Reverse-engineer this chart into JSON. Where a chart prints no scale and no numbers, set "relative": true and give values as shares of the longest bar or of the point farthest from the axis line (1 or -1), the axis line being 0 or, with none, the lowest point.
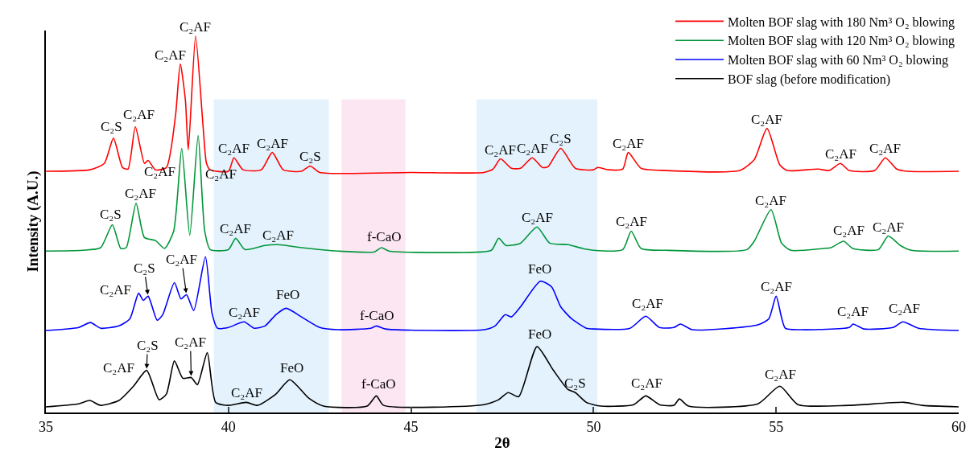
{
  "chart_data": {
    "type": "line",
    "relative": true,
    "xlabel": "2θ",
    "ylabel": "Intensity (A.U.)",
    "xlim": [
      35,
      60
    ],
    "xticks": [
      35,
      40,
      45,
      50,
      55,
      60
    ],
    "grid": false,
    "legend": "top right",
    "marker": "none",
    "line_style": "solid",
    "series": [
      {
        "name": "Molten BOF slag with 180 Nm³ O₂ blowing",
        "color": "#ff0000",
        "x": [
          35.0,
          36.2,
          36.6,
          36.85,
          37.1,
          37.25,
          37.45,
          37.7,
          37.8,
          38.0,
          38.3,
          38.55,
          38.68,
          38.82,
          38.9,
          39.1,
          39.3,
          39.4,
          39.5,
          40.0,
          40.15,
          40.4,
          40.9,
          41.2,
          41.5,
          42.0,
          42.24,
          42.5,
          45,
          47,
          47.25,
          47.45,
          47.75,
          48.0,
          48.32,
          48.6,
          48.75,
          49.1,
          49.5,
          50.0,
          50.11,
          50.4,
          50.8,
          50.95,
          51.3,
          52,
          54.0,
          54.4,
          54.75,
          55.1,
          55.3,
          56.15,
          56.45,
          56.76,
          57.0,
          57.7,
          57.99,
          58.3,
          58.6,
          60
        ],
        "values": [
          0.641,
          0.645,
          0.662,
          0.729,
          0.651,
          0.647,
          0.759,
          0.662,
          0.67,
          0.645,
          0.651,
          0.789,
          0.926,
          0.831,
          0.698,
          1.0,
          0.767,
          0.662,
          0.645,
          0.641,
          0.677,
          0.645,
          0.645,
          0.691,
          0.645,
          0.641,
          0.655,
          0.638,
          0.638,
          0.638,
          0.647,
          0.674,
          0.649,
          0.649,
          0.677,
          0.651,
          0.653,
          0.702,
          0.649,
          0.645,
          0.651,
          0.645,
          0.647,
          0.691,
          0.649,
          0.643,
          0.643,
          0.672,
          0.755,
          0.658,
          0.643,
          0.647,
          0.643,
          0.662,
          0.643,
          0.643,
          0.677,
          0.647,
          0.641,
          0.641
        ]
      },
      {
        "name": "Molten BOF slag with 120 Nm³ O₂ blowing",
        "color": "#009639",
        "x": [
          35,
          36.0,
          36.5,
          36.82,
          37.05,
          37.2,
          37.47,
          37.7,
          38.0,
          38.25,
          38.5,
          38.72,
          38.94,
          39.17,
          39.35,
          39.5,
          40.0,
          40.2,
          40.45,
          41.0,
          41.36,
          42,
          43,
          44,
          44.19,
          44.4,
          46,
          47.2,
          47.4,
          47.6,
          48.0,
          48.45,
          48.8,
          49.3,
          49.7,
          50.0,
          50.8,
          51.03,
          51.3,
          52,
          54.2,
          54.4,
          54.86,
          55.15,
          55.4,
          56.3,
          56.5,
          56.85,
          57.1,
          57.8,
          58.07,
          58.4,
          58.7,
          60
        ],
        "values": [
          0.429,
          0.431,
          0.438,
          0.499,
          0.436,
          0.438,
          0.556,
          0.465,
          0.457,
          0.436,
          0.482,
          0.702,
          0.471,
          0.736,
          0.482,
          0.433,
          0.433,
          0.463,
          0.433,
          0.444,
          0.446,
          0.438,
          0.429,
          0.427,
          0.438,
          0.429,
          0.425,
          0.431,
          0.463,
          0.444,
          0.45,
          0.493,
          0.45,
          0.446,
          0.436,
          0.431,
          0.433,
          0.482,
          0.436,
          0.431,
          0.433,
          0.455,
          0.539,
          0.45,
          0.431,
          0.436,
          0.438,
          0.455,
          0.436,
          0.433,
          0.469,
          0.444,
          0.431,
          0.429
        ]
      },
      {
        "name": "Molten BOF slag with 60 Nm³ O₂ blowing",
        "color": "#0000ff",
        "x": [
          35,
          35.9,
          36.22,
          36.5,
          37.0,
          37.3,
          37.54,
          37.67,
          37.8,
          38.05,
          38.2,
          38.52,
          38.7,
          38.85,
          39.05,
          39.37,
          39.55,
          39.7,
          40.0,
          40.43,
          40.7,
          41.0,
          41.3,
          41.58,
          42.0,
          42.5,
          43,
          43.9,
          44.05,
          44.3,
          47,
          47.3,
          47.58,
          47.75,
          48.0,
          48.54,
          48.85,
          49.1,
          49.4,
          49.8,
          50.0,
          51.0,
          51.43,
          51.8,
          52.2,
          52.38,
          52.7,
          54.5,
          54.8,
          55.0,
          55.25,
          55.7,
          57.0,
          57.11,
          57.4,
          58.2,
          58.47,
          58.9,
          60
        ],
        "values": [
          0.218,
          0.226,
          0.239,
          0.224,
          0.23,
          0.249,
          0.317,
          0.298,
          0.309,
          0.245,
          0.26,
          0.345,
          0.302,
          0.313,
          0.271,
          0.414,
          0.264,
          0.224,
          0.226,
          0.241,
          0.224,
          0.23,
          0.26,
          0.277,
          0.254,
          0.226,
          0.22,
          0.224,
          0.23,
          0.222,
          0.22,
          0.23,
          0.26,
          0.254,
          0.281,
          0.349,
          0.334,
          0.281,
          0.249,
          0.224,
          0.222,
          0.224,
          0.256,
          0.226,
          0.226,
          0.235,
          0.22,
          0.233,
          0.249,
          0.309,
          0.224,
          0.22,
          0.226,
          0.235,
          0.222,
          0.226,
          0.241,
          0.224,
          0.218
        ]
      },
      {
        "name": "BOF slag (before modification)",
        "color": "#000000",
        "x": [
          35,
          35.9,
          36.2,
          36.5,
          37.0,
          37.4,
          37.76,
          38.1,
          38.3,
          38.52,
          38.75,
          38.98,
          39.15,
          39.42,
          39.65,
          40.0,
          40.49,
          40.8,
          41.3,
          41.68,
          42.2,
          42.6,
          43.8,
          44.05,
          44.25,
          47,
          47.4,
          47.66,
          47.95,
          48.45,
          48.9,
          49.3,
          49.5,
          49.8,
          50.2,
          51.1,
          51.43,
          51.8,
          52.2,
          52.35,
          52.6,
          54.5,
          55.1,
          55.6,
          57.0,
          58.5,
          59,
          60
        ],
        "values": [
          0.015,
          0.023,
          0.032,
          0.019,
          0.032,
          0.07,
          0.112,
          0.034,
          0.049,
          0.137,
          0.091,
          0.093,
          0.074,
          0.159,
          0.027,
          0.019,
          0.027,
          0.019,
          0.049,
          0.087,
          0.038,
          0.017,
          0.017,
          0.044,
          0.019,
          0.021,
          0.034,
          0.053,
          0.042,
          0.175,
          0.112,
          0.061,
          0.053,
          0.027,
          0.017,
          0.021,
          0.044,
          0.021,
          0.019,
          0.036,
          0.017,
          0.023,
          0.07,
          0.021,
          0.019,
          0.027,
          0.019,
          0.015
        ]
      }
    ],
    "bands": [
      {
        "axis": "x",
        "from": 39.6,
        "to": 42.75,
        "color": "#e3f2fc"
      },
      {
        "axis": "x",
        "from": 43.1,
        "to": 44.85,
        "color": "#fce6f2"
      },
      {
        "axis": "x",
        "from": 46.8,
        "to": 50.1,
        "color": "#e3f2fc"
      }
    ],
    "annotations": [
      {
        "text": "C₂S",
        "x": 36.8,
        "y": 0.736
      },
      {
        "text": "C₂AF",
        "x": 37.55,
        "y": 0.767
      },
      {
        "text": "C₂AF",
        "x": 38.68,
        "y": 0.926
      },
      {
        "text": "C₂AF",
        "x": 39.1,
        "y": 1.0
      },
      {
        "text": "C₂AF",
        "x": 40.15,
        "y": 0.677
      },
      {
        "text": "C₂AF",
        "x": 41.2,
        "y": 0.691
      },
      {
        "text": "C₂S",
        "x": 42.24,
        "y": 0.655
      },
      {
        "text": "C₂AF",
        "x": 47.45,
        "y": 0.674
      },
      {
        "text": "C₂AF",
        "x": 48.32,
        "y": 0.677
      },
      {
        "text": "C₂S",
        "x": 49.1,
        "y": 0.702
      },
      {
        "text": "C₂AF",
        "x": 50.95,
        "y": 0.691
      },
      {
        "text": "C₂AF",
        "x": 54.75,
        "y": 0.755
      },
      {
        "text": "C₂AF",
        "x": 56.76,
        "y": 0.662
      },
      {
        "text": "C₂AF",
        "x": 57.99,
        "y": 0.677
      },
      {
        "text": "C₂S",
        "x": 36.77,
        "y": 0.503
      },
      {
        "text": "C₂AF",
        "x": 37.58,
        "y": 0.558
      },
      {
        "text": "C₂AF",
        "x": 38.61,
        "y": 0.615
      },
      {
        "text": "C₂AF",
        "x": 39.26,
        "y": 0.609
      },
      {
        "text": "C₂AF",
        "x": 40.2,
        "y": 0.463
      },
      {
        "text": "C₂AF",
        "x": 41.36,
        "y": 0.446
      },
      {
        "text": "f-CaO",
        "x": 44.25,
        "y": 0.442
      },
      {
        "text": "C₂AF",
        "x": 48.45,
        "y": 0.493
      },
      {
        "text": "C₂AF",
        "x": 51.03,
        "y": 0.482
      },
      {
        "text": "C₂AF",
        "x": 54.86,
        "y": 0.539
      },
      {
        "text": "C₂AF",
        "x": 56.98,
        "y": 0.459
      },
      {
        "text": "C₂AF",
        "x": 58.07,
        "y": 0.469
      },
      {
        "text": "C₂AF",
        "x": 37.54,
        "y": 0.317
      },
      {
        "text": "C₂S",
        "x": 37.8,
        "y": 0.309
      },
      {
        "text": "C₂AF",
        "x": 38.85,
        "y": 0.313
      },
      {
        "text": "C₂AF",
        "x": 40.43,
        "y": 0.241
      },
      {
        "text": "FeO",
        "x": 41.63,
        "y": 0.288
      },
      {
        "text": "f-CaO",
        "x": 44.05,
        "y": 0.232
      },
      {
        "text": "FeO",
        "x": 48.52,
        "y": 0.357
      },
      {
        "text": "C₂AF",
        "x": 51.47,
        "y": 0.264
      },
      {
        "text": "C₂AF",
        "x": 55.0,
        "y": 0.309
      },
      {
        "text": "C₂AF",
        "x": 57.11,
        "y": 0.243
      },
      {
        "text": "C₂AF",
        "x": 58.51,
        "y": 0.252
      },
      {
        "text": "C₂AF",
        "x": 37.76,
        "y": 0.112
      },
      {
        "text": "C₂S",
        "x": 37.76,
        "y": 0.112
      },
      {
        "text": "C₂AF",
        "x": 38.98,
        "y": 0.093
      },
      {
        "text": "C₂AF",
        "x": 40.49,
        "y": 0.027
      },
      {
        "text": "FeO",
        "x": 41.74,
        "y": 0.095
      },
      {
        "text": "f-CaO",
        "x": 44.1,
        "y": 0.051
      },
      {
        "text": "FeO",
        "x": 48.52,
        "y": 0.184
      },
      {
        "text": "C₂S",
        "x": 49.5,
        "y": 0.053
      },
      {
        "text": "C₂AF",
        "x": 51.45,
        "y": 0.053
      },
      {
        "text": "C₂AF",
        "x": 55.12,
        "y": 0.078
      }
    ]
  }
}
